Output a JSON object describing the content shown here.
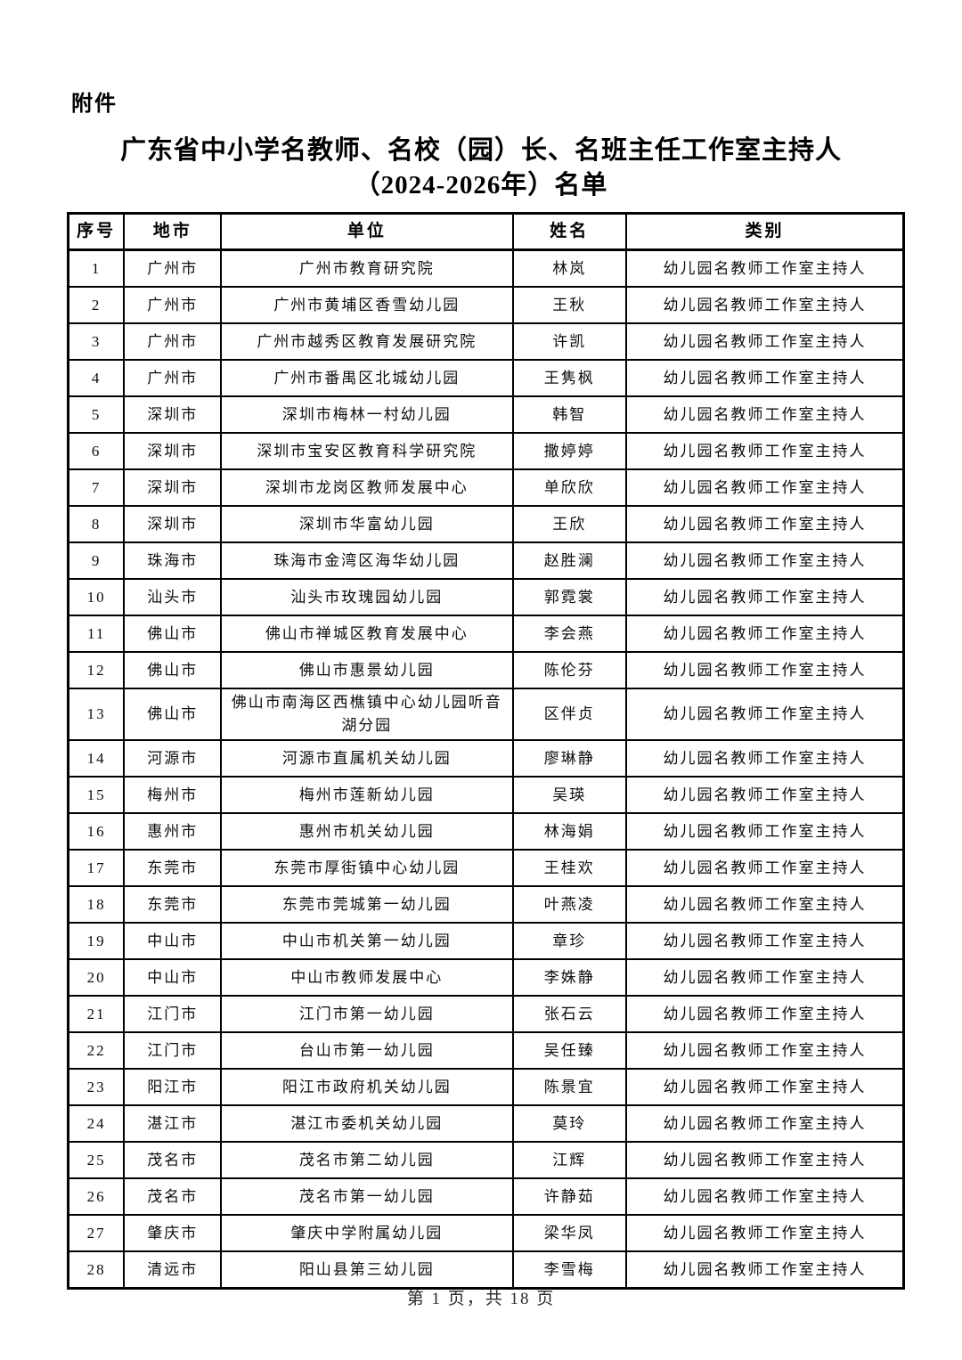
{
  "page": {
    "attachment_label": "附件",
    "title_line1": "广东省中小学名教师、名校（园）长、名班主任工作室主持人",
    "title_line2": "（2024-2026年）名单",
    "footer": "第 1 页，共 18 页"
  },
  "table": {
    "headers": [
      "序号",
      "地市",
      "单位",
      "姓名",
      "类别"
    ],
    "rows": [
      [
        "1",
        "广州市",
        "广州市教育研究院",
        "林岚",
        "幼儿园名教师工作室主持人"
      ],
      [
        "2",
        "广州市",
        "广州市黄埔区香雪幼儿园",
        "王秋",
        "幼儿园名教师工作室主持人"
      ],
      [
        "3",
        "广州市",
        "广州市越秀区教育发展研究院",
        "许凯",
        "幼儿园名教师工作室主持人"
      ],
      [
        "4",
        "广州市",
        "广州市番禺区北城幼儿园",
        "王隽枫",
        "幼儿园名教师工作室主持人"
      ],
      [
        "5",
        "深圳市",
        "深圳市梅林一村幼儿园",
        "韩智",
        "幼儿园名教师工作室主持人"
      ],
      [
        "6",
        "深圳市",
        "深圳市宝安区教育科学研究院",
        "撒婷婷",
        "幼儿园名教师工作室主持人"
      ],
      [
        "7",
        "深圳市",
        "深圳市龙岗区教师发展中心",
        "单欣欣",
        "幼儿园名教师工作室主持人"
      ],
      [
        "8",
        "深圳市",
        "深圳市华富幼儿园",
        "王欣",
        "幼儿园名教师工作室主持人"
      ],
      [
        "9",
        "珠海市",
        "珠海市金湾区海华幼儿园",
        "赵胜澜",
        "幼儿园名教师工作室主持人"
      ],
      [
        "10",
        "汕头市",
        "汕头市玫瑰园幼儿园",
        "郭霓裳",
        "幼儿园名教师工作室主持人"
      ],
      [
        "11",
        "佛山市",
        "佛山市禅城区教育发展中心",
        "李会燕",
        "幼儿园名教师工作室主持人"
      ],
      [
        "12",
        "佛山市",
        "佛山市惠景幼儿园",
        "陈伦芬",
        "幼儿园名教师工作室主持人"
      ],
      [
        "13",
        "佛山市",
        "佛山市南海区西樵镇中心幼儿园听音湖分园",
        "区伴贞",
        "幼儿园名教师工作室主持人"
      ],
      [
        "14",
        "河源市",
        "河源市直属机关幼儿园",
        "廖琳静",
        "幼儿园名教师工作室主持人"
      ],
      [
        "15",
        "梅州市",
        "梅州市莲新幼儿园",
        "吴瑛",
        "幼儿园名教师工作室主持人"
      ],
      [
        "16",
        "惠州市",
        "惠州市机关幼儿园",
        "林海娟",
        "幼儿园名教师工作室主持人"
      ],
      [
        "17",
        "东莞市",
        "东莞市厚街镇中心幼儿园",
        "王桂欢",
        "幼儿园名教师工作室主持人"
      ],
      [
        "18",
        "东莞市",
        "东莞市莞城第一幼儿园",
        "叶燕凌",
        "幼儿园名教师工作室主持人"
      ],
      [
        "19",
        "中山市",
        "中山市机关第一幼儿园",
        "章珍",
        "幼儿园名教师工作室主持人"
      ],
      [
        "20",
        "中山市",
        "中山市教师发展中心",
        "李姝静",
        "幼儿园名教师工作室主持人"
      ],
      [
        "21",
        "江门市",
        "江门市第一幼儿园",
        "张石云",
        "幼儿园名教师工作室主持人"
      ],
      [
        "22",
        "江门市",
        "台山市第一幼儿园",
        "吴任臻",
        "幼儿园名教师工作室主持人"
      ],
      [
        "23",
        "阳江市",
        "阳江市政府机关幼儿园",
        "陈景宜",
        "幼儿园名教师工作室主持人"
      ],
      [
        "24",
        "湛江市",
        "湛江市委机关幼儿园",
        "莫玲",
        "幼儿园名教师工作室主持人"
      ],
      [
        "25",
        "茂名市",
        "茂名市第二幼儿园",
        "江辉",
        "幼儿园名教师工作室主持人"
      ],
      [
        "26",
        "茂名市",
        "茂名市第一幼儿园",
        "许静茹",
        "幼儿园名教师工作室主持人"
      ],
      [
        "27",
        "肇庆市",
        "肇庆中学附属幼儿园",
        "梁华凤",
        "幼儿园名教师工作室主持人"
      ],
      [
        "28",
        "清远市",
        "阳山县第三幼儿园",
        "李雪梅",
        "幼儿园名教师工作室主持人"
      ]
    ]
  }
}
